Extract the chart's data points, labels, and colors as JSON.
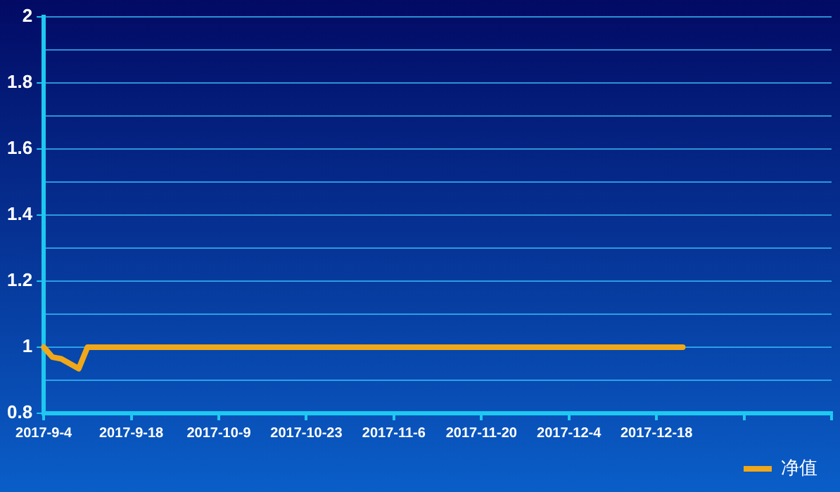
{
  "chart_data": {
    "type": "line",
    "categories": [
      "2017-9-4",
      null,
      null,
      null,
      null,
      null,
      null,
      null,
      null,
      null,
      "2017-9-18",
      null,
      null,
      null,
      null,
      null,
      null,
      null,
      null,
      null,
      "2017-10-9",
      null,
      null,
      null,
      null,
      null,
      null,
      null,
      null,
      null,
      "2017-10-23",
      null,
      null,
      null,
      null,
      null,
      null,
      null,
      null,
      null,
      "2017-11-6",
      null,
      null,
      null,
      null,
      null,
      null,
      null,
      null,
      null,
      "2017-11-20",
      null,
      null,
      null,
      null,
      null,
      null,
      null,
      null,
      null,
      "2017-12-4",
      null,
      null,
      null,
      null,
      null,
      null,
      null,
      null,
      null,
      "2017-12-18",
      null,
      null,
      null,
      null,
      null,
      null,
      null,
      null,
      null,
      null,
      null,
      null,
      null,
      null,
      null,
      null,
      null,
      null,
      null,
      null
    ],
    "series": [
      {
        "name": "净值",
        "color": "#f0a818",
        "values": [
          1,
          0.97,
          0.965,
          0.95,
          0.935,
          1,
          1,
          1,
          1,
          1,
          1,
          1,
          1,
          1,
          1,
          1,
          1,
          1,
          1,
          1,
          1,
          1,
          1,
          1,
          1,
          1,
          1,
          1,
          1,
          1,
          1,
          1,
          1,
          1,
          1,
          1,
          1,
          1,
          1,
          1,
          1,
          1,
          1,
          1,
          1,
          1,
          1,
          1,
          1,
          1,
          1,
          1,
          1,
          1,
          1,
          1,
          1,
          1,
          1,
          1,
          1,
          1,
          1,
          1,
          1,
          1,
          1,
          1,
          1,
          1,
          1,
          1,
          1,
          1,
          null,
          null,
          null,
          null,
          null,
          null,
          null,
          null,
          null,
          null,
          null,
          null,
          null,
          null,
          null,
          null,
          null
        ]
      }
    ],
    "ylim": [
      0.8,
      2
    ],
    "yticks": [
      0.8,
      {
        "value": 0.9,
        "label": null
      },
      1,
      {
        "value": 1.1,
        "label": null
      },
      1.2,
      {
        "value": 1.3,
        "label": null
      },
      1.4,
      {
        "value": 1.5,
        "label": null
      },
      1.6,
      {
        "value": 1.7,
        "label": null
      },
      1.8,
      {
        "value": 1.9,
        "label": null
      },
      2
    ],
    "grid": "y",
    "legend": "bottom right",
    "marker": "none",
    "line_style": "solid"
  }
}
